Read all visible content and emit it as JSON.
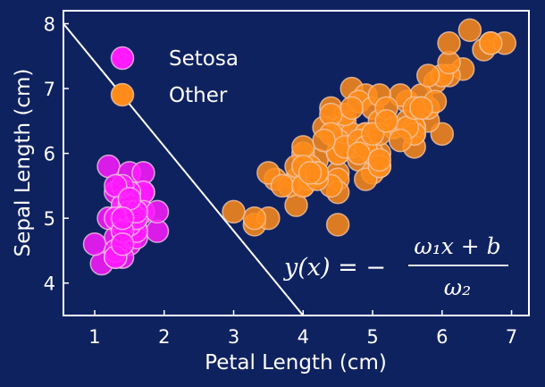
{
  "chart_data": {
    "type": "scatter",
    "title": "",
    "xlabel": "Petal Length (cm)",
    "ylabel": "Sepal Length (cm)",
    "xlim": [
      0.55,
      7.25
    ],
    "ylim": [
      3.5,
      8.2
    ],
    "xticks": [
      1,
      2,
      3,
      4,
      5,
      6,
      7
    ],
    "yticks": [
      4,
      5,
      6,
      7,
      8
    ],
    "grid": false,
    "legend_position": "top-left",
    "background_color": "#0f2260",
    "series": [
      {
        "name": "Setosa",
        "color": "#ff1aff",
        "points": [
          [
            1.4,
            5.1
          ],
          [
            1.4,
            4.9
          ],
          [
            1.3,
            4.7
          ],
          [
            1.5,
            4.6
          ],
          [
            1.4,
            5.0
          ],
          [
            1.7,
            5.4
          ],
          [
            1.4,
            4.6
          ],
          [
            1.5,
            5.0
          ],
          [
            1.4,
            4.4
          ],
          [
            1.5,
            4.9
          ],
          [
            1.5,
            5.4
          ],
          [
            1.6,
            4.8
          ],
          [
            1.4,
            4.8
          ],
          [
            1.1,
            4.3
          ],
          [
            1.2,
            5.8
          ],
          [
            1.5,
            5.7
          ],
          [
            1.3,
            5.4
          ],
          [
            1.4,
            5.1
          ],
          [
            1.7,
            5.7
          ],
          [
            1.5,
            5.1
          ],
          [
            1.7,
            5.4
          ],
          [
            1.5,
            5.1
          ],
          [
            1.0,
            4.6
          ],
          [
            1.7,
            5.1
          ],
          [
            1.9,
            4.8
          ],
          [
            1.6,
            5.0
          ],
          [
            1.6,
            5.0
          ],
          [
            1.5,
            5.2
          ],
          [
            1.4,
            5.2
          ],
          [
            1.6,
            4.7
          ],
          [
            1.6,
            4.8
          ],
          [
            1.5,
            5.4
          ],
          [
            1.5,
            5.2
          ],
          [
            1.4,
            5.5
          ],
          [
            1.5,
            4.9
          ],
          [
            1.2,
            5.0
          ],
          [
            1.3,
            5.5
          ],
          [
            1.4,
            4.9
          ],
          [
            1.3,
            4.4
          ],
          [
            1.5,
            5.1
          ],
          [
            1.3,
            5.0
          ],
          [
            1.3,
            4.5
          ],
          [
            1.3,
            4.4
          ],
          [
            1.6,
            5.0
          ],
          [
            1.9,
            5.1
          ],
          [
            1.4,
            4.8
          ],
          [
            1.6,
            5.1
          ],
          [
            1.4,
            4.6
          ],
          [
            1.5,
            5.3
          ],
          [
            1.4,
            5.0
          ]
        ]
      },
      {
        "name": "Other",
        "color": "#ff8c1a",
        "points": [
          [
            4.7,
            7.0
          ],
          [
            4.5,
            6.4
          ],
          [
            4.9,
            6.9
          ],
          [
            4.0,
            5.5
          ],
          [
            4.6,
            6.5
          ],
          [
            4.5,
            5.7
          ],
          [
            4.7,
            6.3
          ],
          [
            3.3,
            4.9
          ],
          [
            4.6,
            6.6
          ],
          [
            3.9,
            5.2
          ],
          [
            3.5,
            5.0
          ],
          [
            4.2,
            5.9
          ],
          [
            4.0,
            6.0
          ],
          [
            4.7,
            6.1
          ],
          [
            3.6,
            5.6
          ],
          [
            4.4,
            6.7
          ],
          [
            4.5,
            5.6
          ],
          [
            4.1,
            5.8
          ],
          [
            4.5,
            6.2
          ],
          [
            3.9,
            5.6
          ],
          [
            4.8,
            5.9
          ],
          [
            4.0,
            6.1
          ],
          [
            4.9,
            6.3
          ],
          [
            4.7,
            6.1
          ],
          [
            4.3,
            6.4
          ],
          [
            4.4,
            6.6
          ],
          [
            4.8,
            6.8
          ],
          [
            5.0,
            6.7
          ],
          [
            4.5,
            6.0
          ],
          [
            3.5,
            5.7
          ],
          [
            3.8,
            5.5
          ],
          [
            3.7,
            5.5
          ],
          [
            3.9,
            5.8
          ],
          [
            5.1,
            6.0
          ],
          [
            4.5,
            5.4
          ],
          [
            4.5,
            6.0
          ],
          [
            4.7,
            6.7
          ],
          [
            4.4,
            6.3
          ],
          [
            4.1,
            5.6
          ],
          [
            4.0,
            5.5
          ],
          [
            4.4,
            5.5
          ],
          [
            4.6,
            6.1
          ],
          [
            4.0,
            5.8
          ],
          [
            3.3,
            5.0
          ],
          [
            4.2,
            5.6
          ],
          [
            4.2,
            5.7
          ],
          [
            4.2,
            5.7
          ],
          [
            4.3,
            6.2
          ],
          [
            3.0,
            5.1
          ],
          [
            4.1,
            5.7
          ],
          [
            6.0,
            6.3
          ],
          [
            5.1,
            5.8
          ],
          [
            5.9,
            7.1
          ],
          [
            5.6,
            6.3
          ],
          [
            5.8,
            6.5
          ],
          [
            6.6,
            7.6
          ],
          [
            4.5,
            4.9
          ],
          [
            6.3,
            7.3
          ],
          [
            5.8,
            6.7
          ],
          [
            6.1,
            7.2
          ],
          [
            5.1,
            6.5
          ],
          [
            5.3,
            6.4
          ],
          [
            5.5,
            6.8
          ],
          [
            5.0,
            5.7
          ],
          [
            5.1,
            5.8
          ],
          [
            5.3,
            6.4
          ],
          [
            5.5,
            6.5
          ],
          [
            6.7,
            7.7
          ],
          [
            6.9,
            7.7
          ],
          [
            5.0,
            6.0
          ],
          [
            5.7,
            6.9
          ],
          [
            4.9,
            5.6
          ],
          [
            6.7,
            7.7
          ],
          [
            4.9,
            6.3
          ],
          [
            5.7,
            6.7
          ],
          [
            6.0,
            7.2
          ],
          [
            4.8,
            6.2
          ],
          [
            4.9,
            6.1
          ],
          [
            5.6,
            6.4
          ],
          [
            5.8,
            7.2
          ],
          [
            6.1,
            7.4
          ],
          [
            6.4,
            7.9
          ],
          [
            5.6,
            6.4
          ],
          [
            5.1,
            6.3
          ],
          [
            5.6,
            6.1
          ],
          [
            6.1,
            7.7
          ],
          [
            5.6,
            6.3
          ],
          [
            5.5,
            6.4
          ],
          [
            4.8,
            6.0
          ],
          [
            5.4,
            6.9
          ],
          [
            5.6,
            6.7
          ],
          [
            5.1,
            6.9
          ],
          [
            5.1,
            5.8
          ],
          [
            5.9,
            6.8
          ],
          [
            5.7,
            6.7
          ],
          [
            5.2,
            6.7
          ],
          [
            5.0,
            6.3
          ],
          [
            5.2,
            6.5
          ],
          [
            5.4,
            6.2
          ],
          [
            5.1,
            5.9
          ]
        ]
      }
    ],
    "decision_boundary": {
      "points": [
        [
          0.55,
          8.0
        ],
        [
          4.0,
          3.5
        ]
      ],
      "color": "#ffffff"
    }
  },
  "equation": {
    "lhs": "y(x) = −",
    "numerator": "ω₁x + b",
    "denominator": "ω₂"
  }
}
